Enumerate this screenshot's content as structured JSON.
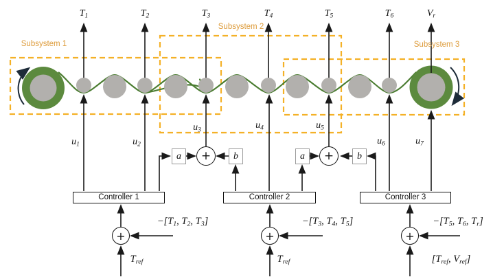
{
  "colors": {
    "dash_gold": "#f4b127",
    "label_orange": "#dd9b3a",
    "web_green": "#4a7c30",
    "roller_green": "#5c8a3e",
    "roller_gray": "#b2b0ad",
    "ink": "#1a1a1a",
    "rotation_arrow": "#1d2b38"
  },
  "subsystems": [
    {
      "label": "Subsystem 1"
    },
    {
      "label": "Subsystem 2"
    },
    {
      "label": "Subsystem 3"
    }
  ],
  "controllers": [
    {
      "label": "Controller 1"
    },
    {
      "label": "Controller 2"
    },
    {
      "label": "Controller 3"
    }
  ],
  "gain_blocks": {
    "a": "a",
    "b": "b"
  },
  "sum": {
    "plus": "+"
  },
  "math": {
    "T1": [
      {
        "t": "T",
        "s": "1"
      }
    ],
    "T2": [
      {
        "t": "T",
        "s": "2"
      }
    ],
    "T3": [
      {
        "t": "T",
        "s": "3"
      }
    ],
    "T4": [
      {
        "t": "T",
        "s": "4"
      }
    ],
    "T5": [
      {
        "t": "T",
        "s": "5"
      }
    ],
    "T6": [
      {
        "t": "T",
        "s": "6"
      }
    ],
    "Vr": [
      {
        "t": "V",
        "s": "r"
      }
    ],
    "u1": [
      {
        "t": "u",
        "s": "1"
      }
    ],
    "u2": [
      {
        "t": "u",
        "s": "2"
      }
    ],
    "u3": [
      {
        "t": "u",
        "s": "3"
      }
    ],
    "u4": [
      {
        "t": "u",
        "s": "4"
      }
    ],
    "u5": [
      {
        "t": "u",
        "s": "5"
      }
    ],
    "u6": [
      {
        "t": "u",
        "s": "6"
      }
    ],
    "u7": [
      {
        "t": "u",
        "s": "7"
      }
    ],
    "fb1": [
      {
        "t": "−["
      },
      {
        "t": "T",
        "s": "1"
      },
      {
        "t": ", "
      },
      {
        "t": "T",
        "s": "2"
      },
      {
        "t": ", "
      },
      {
        "t": "T",
        "s": "3"
      },
      {
        "t": "]"
      }
    ],
    "fb2": [
      {
        "t": "−["
      },
      {
        "t": "T",
        "s": "3"
      },
      {
        "t": ", "
      },
      {
        "t": "T",
        "s": "4"
      },
      {
        "t": ", "
      },
      {
        "t": "T",
        "s": "5"
      },
      {
        "t": "]"
      }
    ],
    "fb3": [
      {
        "t": "−["
      },
      {
        "t": "T",
        "s": "5"
      },
      {
        "t": ", "
      },
      {
        "t": "T",
        "s": "6"
      },
      {
        "t": ", "
      },
      {
        "t": "T",
        "s": "r"
      },
      {
        "t": "]"
      }
    ],
    "ref1": [
      {
        "t": "T",
        "s": "ref"
      }
    ],
    "ref2": [
      {
        "t": "T",
        "s": "ref"
      }
    ],
    "ref3": [
      {
        "t": "["
      },
      {
        "t": "T",
        "s": "ref"
      },
      {
        "t": ", "
      },
      {
        "t": "V",
        "s": "ref"
      },
      {
        "t": "]"
      }
    ]
  }
}
